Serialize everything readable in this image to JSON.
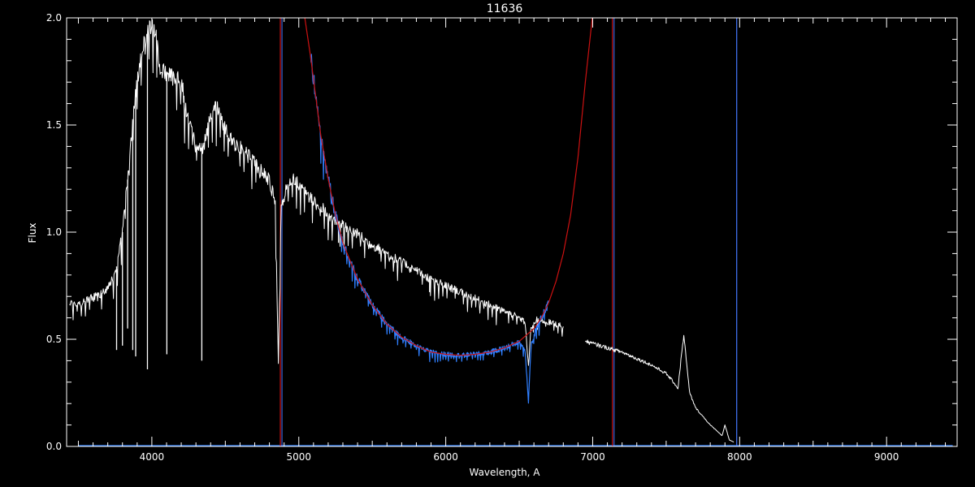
{
  "chart_data": {
    "type": "line",
    "title": "11636",
    "xlabel": "Wavelength, A",
    "ylabel": "Flux",
    "xlim": [
      3420,
      9480
    ],
    "ylim": [
      0.0,
      2.0
    ],
    "x_ticks": [
      4000,
      5000,
      6000,
      7000,
      8000,
      9000
    ],
    "x_tick_labels": [
      "4000",
      "5000",
      "6000",
      "7000",
      "8000",
      "9000"
    ],
    "y_ticks": [
      0.0,
      0.5,
      1.0,
      1.5,
      2.0
    ],
    "y_tick_labels": [
      "0.0",
      "0.5",
      "1.0",
      "1.5",
      "2.0"
    ],
    "grid": false,
    "colors": {
      "background": "#000000",
      "axes": "#ffffff",
      "spectrum": "#ffffff",
      "model": "#cc1111",
      "observed_ratio": "#2f7fff",
      "vertical_red": "#cc1111",
      "vertical_blue": "#4477ff"
    },
    "series": [
      {
        "key": "spectrum",
        "x": [
          3440,
          3500,
          3580,
          3650,
          3700,
          3750,
          3800,
          3850,
          3900,
          3950,
          4000,
          4030,
          4060,
          4100,
          4150,
          4200,
          4250,
          4300,
          4350,
          4400,
          4450,
          4500,
          4550,
          4600,
          4650,
          4700,
          4750,
          4800,
          4840,
          4861,
          4880,
          4920,
          4960,
          5000,
          5050,
          5100,
          5150,
          5200,
          5250,
          5300,
          5400,
          5500,
          5600,
          5700,
          5800,
          5900,
          6000,
          6100,
          6200,
          6300,
          6400,
          6500,
          6540,
          6563,
          6580,
          6620,
          6700,
          6800
        ],
        "y": [
          0.67,
          0.66,
          0.69,
          0.71,
          0.74,
          0.8,
          1.0,
          1.35,
          1.72,
          1.9,
          1.97,
          1.93,
          1.74,
          1.75,
          1.73,
          1.7,
          1.52,
          1.4,
          1.38,
          1.56,
          1.58,
          1.48,
          1.42,
          1.4,
          1.36,
          1.32,
          1.28,
          1.24,
          1.15,
          0.38,
          1.12,
          1.23,
          1.26,
          1.22,
          1.18,
          1.15,
          1.12,
          1.08,
          1.06,
          1.03,
          0.99,
          0.94,
          0.9,
          0.86,
          0.82,
          0.78,
          0.75,
          0.72,
          0.69,
          0.66,
          0.63,
          0.6,
          0.58,
          0.37,
          0.55,
          0.59,
          0.58,
          0.56
        ],
        "absorption_x": [
          3760,
          3800,
          3835,
          3870,
          3890,
          3970,
          4102,
          4340,
          4861,
          5270,
          5890,
          6563
        ],
        "absorption_min": [
          0.45,
          0.47,
          0.55,
          0.45,
          0.42,
          0.36,
          0.43,
          0.4,
          0.38,
          0.95,
          0.72,
          0.37
        ]
      },
      {
        "key": "spectrum_red_segment",
        "x": [
          6950,
          7000,
          7100,
          7200,
          7300,
          7400,
          7500,
          7550,
          7580,
          7600,
          7620,
          7640,
          7660,
          7700,
          7750,
          7800,
          7850,
          7880,
          7900,
          7930,
          7960
        ],
        "y": [
          0.49,
          0.48,
          0.46,
          0.44,
          0.41,
          0.38,
          0.34,
          0.3,
          0.27,
          0.4,
          0.52,
          0.38,
          0.25,
          0.18,
          0.14,
          0.1,
          0.07,
          0.05,
          0.1,
          0.03,
          0.02
        ]
      },
      {
        "key": "model",
        "x": [
          5030,
          5080,
          5150,
          5200,
          5250,
          5300,
          5400,
          5500,
          5600,
          5700,
          5800,
          5900,
          6000,
          6100,
          6200,
          6300,
          6400,
          6500,
          6600,
          6650,
          6700,
          6750,
          6800,
          6850,
          6900,
          6950,
          7000,
          7030
        ],
        "y": [
          2.05,
          1.82,
          1.45,
          1.25,
          1.08,
          0.95,
          0.78,
          0.66,
          0.57,
          0.51,
          0.47,
          0.44,
          0.43,
          0.425,
          0.43,
          0.44,
          0.46,
          0.49,
          0.55,
          0.6,
          0.67,
          0.77,
          0.9,
          1.08,
          1.35,
          1.7,
          2.02,
          2.05
        ]
      },
      {
        "key": "observed_ratio",
        "x": [
          5080,
          5150,
          5200,
          5250,
          5300,
          5400,
          5500,
          5600,
          5700,
          5800,
          5900,
          6000,
          6100,
          6200,
          6300,
          6400,
          6500,
          6540,
          6563,
          6580,
          6620,
          6680,
          6700
        ],
        "y": [
          1.82,
          1.45,
          1.25,
          1.08,
          0.95,
          0.78,
          0.66,
          0.57,
          0.51,
          0.47,
          0.44,
          0.43,
          0.425,
          0.43,
          0.44,
          0.46,
          0.49,
          0.45,
          0.21,
          0.47,
          0.56,
          0.64,
          0.67
        ]
      }
    ],
    "vertical_lines": [
      {
        "x": 4880,
        "color": "vertical_red",
        "double": true
      },
      {
        "x": 7140,
        "color": "vertical_red",
        "double": true
      },
      {
        "x": 7980,
        "color": "vertical_blue",
        "double": false
      }
    ],
    "baseline": {
      "y": 0.003,
      "x_from": 3500,
      "x_to": 9450,
      "color": "observed_ratio"
    }
  }
}
